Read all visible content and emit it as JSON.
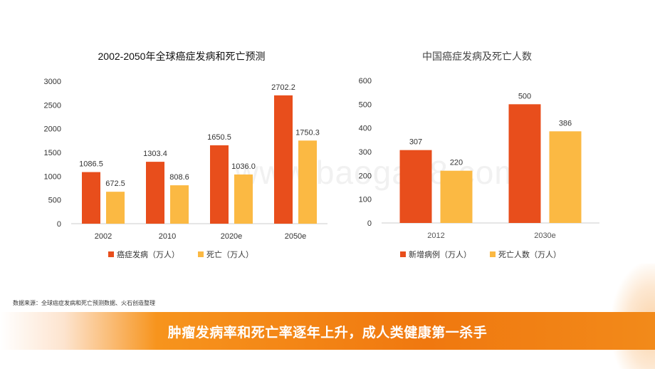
{
  "chart_data": [
    {
      "type": "bar",
      "title": "2002-2050年全球癌症发病和死亡预测",
      "categories": [
        "2002",
        "2010",
        "2020e",
        "2050e"
      ],
      "series": [
        {
          "name": "癌症发病（万人）",
          "color": "#e84e1c",
          "values": [
            1086.5,
            1303.4,
            1650.5,
            2702.2
          ],
          "labels": [
            "1086.5",
            "1303.4",
            "1650.5",
            "2702.2"
          ]
        },
        {
          "name": "死亡（万人）",
          "color": "#fbb943",
          "values": [
            672.5,
            808.6,
            1036.0,
            1750.3
          ],
          "labels": [
            "672.5",
            "808.6",
            "1036.0",
            "1750.3"
          ]
        }
      ],
      "yticks": [
        "0",
        "500",
        "1000",
        "1500",
        "2000",
        "2500",
        "3000"
      ],
      "ylim": [
        0,
        3000
      ],
      "grid": false,
      "legend_position": "bottom"
    },
    {
      "type": "bar",
      "title": "中国癌症发病及死亡人数",
      "categories": [
        "2012",
        "2030e"
      ],
      "series": [
        {
          "name": "新增病例（万人）",
          "color": "#e84e1c",
          "values": [
            307,
            500
          ],
          "labels": [
            "307",
            "500"
          ]
        },
        {
          "name": "死亡人数（万人）",
          "color": "#fbb943",
          "values": [
            220,
            386
          ],
          "labels": [
            "220",
            "386"
          ]
        }
      ],
      "yticks": [
        "0",
        "100",
        "200",
        "300",
        "400",
        "500",
        "600"
      ],
      "ylim": [
        0,
        600
      ],
      "grid": false,
      "legend_position": "bottom"
    }
  ],
  "source_text": "数据来源：全球癌症发病和死亡预测数据、火石创造整理",
  "banner_text": "肿瘤发病率和死亡率逐年上升，成人类健康第一杀手",
  "watermark_text": "www.baogao8.com"
}
